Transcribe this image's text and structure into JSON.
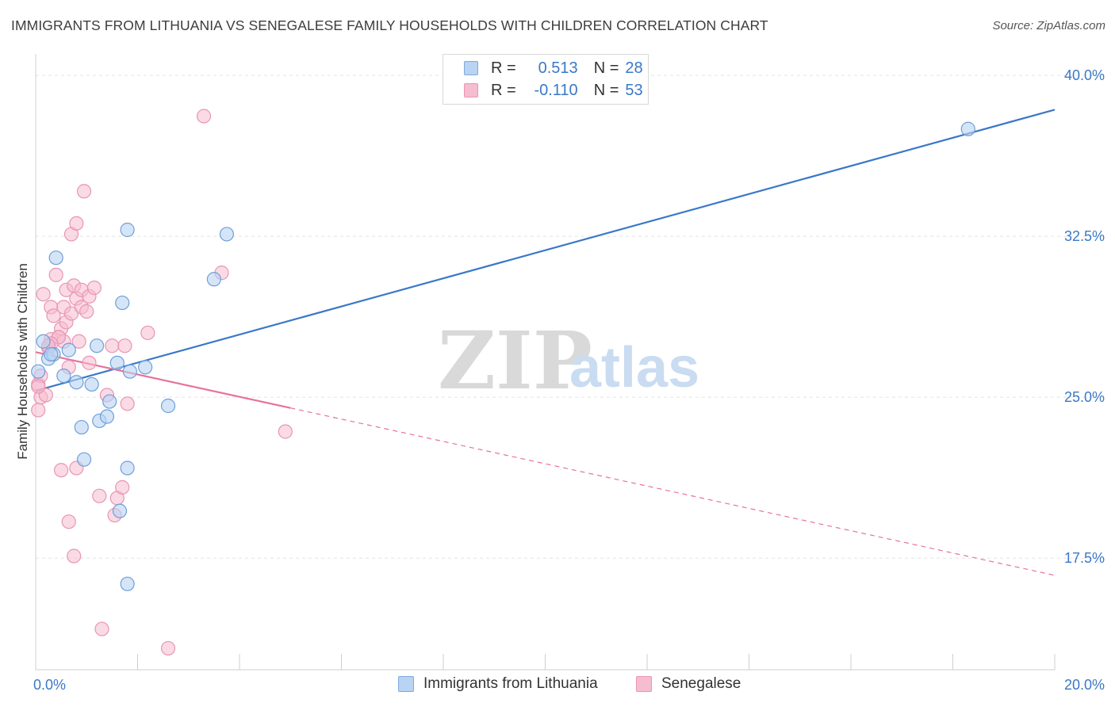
{
  "title": "IMMIGRANTS FROM LITHUANIA VS SENEGALESE FAMILY HOUSEHOLDS WITH CHILDREN CORRELATION CHART",
  "source": "Source: ZipAtlas.com",
  "watermark": {
    "zip": "ZIP",
    "atlas": "atlas"
  },
  "colors": {
    "blue": "#3a78c8",
    "blue_fill": "#b9d3f3",
    "pink": "#e8729b",
    "pink_fill": "#f6bcd0",
    "grid": "#e3e3e3"
  },
  "legend": {
    "rows": [
      {
        "r_label": "R =",
        "r_value": "0.513",
        "n_label": "N =",
        "n_value": "28"
      },
      {
        "r_label": "R =",
        "r_value": "-0.110",
        "n_label": "N =",
        "n_value": "53"
      }
    ]
  },
  "bottom_legend": {
    "series1": "Immigrants from Lithuania",
    "series2": "Senegalese"
  },
  "chart_data": {
    "type": "scatter",
    "title": "IMMIGRANTS FROM LITHUANIA VS SENEGALESE FAMILY HOUSEHOLDS WITH CHILDREN CORRELATION CHART",
    "xlabel": "",
    "ylabel": "Family Households with Children",
    "xlim": [
      0,
      20
    ],
    "ylim": [
      12.3,
      41.0
    ],
    "x_tick_labels": [
      "0.0%",
      "20.0%"
    ],
    "y_ticks": [
      17.5,
      25.0,
      32.5,
      40.0
    ],
    "y_tick_labels": [
      "17.5%",
      "25.0%",
      "32.5%",
      "40.0%"
    ],
    "series": [
      {
        "name": "Immigrants from Lithuania",
        "color": "#3a78c8",
        "R": 0.513,
        "N": 28,
        "trend": {
          "x0": 0,
          "y0": 25.3,
          "x1": 20,
          "y1": 38.4
        },
        "points": [
          [
            0.05,
            26.2
          ],
          [
            0.15,
            27.6
          ],
          [
            0.25,
            26.8
          ],
          [
            0.35,
            27.0
          ],
          [
            0.4,
            31.5
          ],
          [
            0.55,
            26.0
          ],
          [
            0.65,
            27.2
          ],
          [
            0.8,
            25.7
          ],
          [
            0.9,
            23.6
          ],
          [
            0.95,
            22.1
          ],
          [
            1.1,
            25.6
          ],
          [
            1.2,
            27.4
          ],
          [
            1.25,
            23.9
          ],
          [
            1.4,
            24.1
          ],
          [
            1.45,
            24.8
          ],
          [
            1.6,
            26.6
          ],
          [
            1.65,
            19.7
          ],
          [
            1.7,
            29.4
          ],
          [
            1.8,
            32.8
          ],
          [
            1.85,
            26.2
          ],
          [
            2.15,
            26.4
          ],
          [
            1.8,
            21.7
          ],
          [
            1.8,
            16.3
          ],
          [
            2.6,
            24.6
          ],
          [
            3.5,
            30.5
          ],
          [
            3.75,
            32.6
          ],
          [
            18.3,
            37.5
          ],
          [
            0.3,
            27.0
          ]
        ]
      },
      {
        "name": "Senegalese",
        "color": "#e8729b",
        "R": -0.11,
        "N": 53,
        "trend": {
          "x0": 0,
          "y0": 27.1,
          "x1": 5.0,
          "y1": 24.5,
          "dash_x1": 20,
          "dash_y1": 16.7
        },
        "points": [
          [
            0.05,
            24.4
          ],
          [
            0.05,
            25.6
          ],
          [
            0.1,
            26.0
          ],
          [
            0.1,
            25.0
          ],
          [
            0.15,
            29.8
          ],
          [
            0.2,
            25.1
          ],
          [
            0.25,
            27.3
          ],
          [
            0.3,
            27.7
          ],
          [
            0.3,
            29.2
          ],
          [
            0.35,
            28.8
          ],
          [
            0.4,
            30.7
          ],
          [
            0.45,
            27.8
          ],
          [
            0.5,
            28.2
          ],
          [
            0.5,
            21.6
          ],
          [
            0.55,
            27.6
          ],
          [
            0.55,
            29.2
          ],
          [
            0.6,
            28.5
          ],
          [
            0.6,
            30.0
          ],
          [
            0.65,
            19.2
          ],
          [
            0.65,
            26.4
          ],
          [
            0.7,
            32.6
          ],
          [
            0.7,
            28.9
          ],
          [
            0.75,
            30.2
          ],
          [
            0.8,
            33.1
          ],
          [
            0.8,
            29.6
          ],
          [
            0.8,
            21.7
          ],
          [
            0.85,
            27.6
          ],
          [
            0.9,
            29.2
          ],
          [
            0.9,
            30.0
          ],
          [
            0.95,
            34.6
          ],
          [
            1.0,
            29.0
          ],
          [
            1.05,
            26.6
          ],
          [
            1.05,
            29.7
          ],
          [
            1.15,
            30.1
          ],
          [
            1.25,
            20.4
          ],
          [
            1.3,
            14.2
          ],
          [
            1.4,
            25.1
          ],
          [
            1.5,
            27.4
          ],
          [
            1.55,
            19.5
          ],
          [
            1.6,
            20.3
          ],
          [
            1.7,
            20.8
          ],
          [
            1.75,
            27.4
          ],
          [
            1.8,
            24.7
          ],
          [
            2.2,
            28.0
          ],
          [
            2.6,
            13.3
          ],
          [
            3.3,
            38.1
          ],
          [
            3.65,
            30.8
          ],
          [
            4.9,
            23.4
          ],
          [
            0.75,
            17.6
          ],
          [
            0.05,
            25.5
          ],
          [
            0.45,
            27.8
          ],
          [
            0.3,
            27.5
          ],
          [
            0.25,
            27.4
          ]
        ]
      }
    ]
  }
}
